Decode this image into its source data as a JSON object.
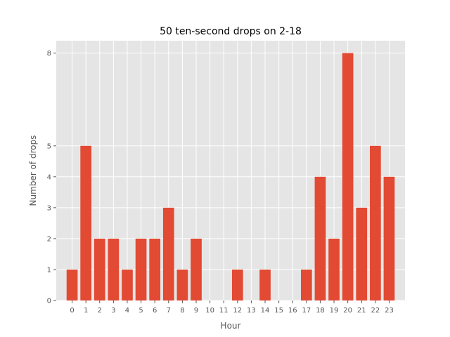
{
  "chart_data": {
    "type": "bar",
    "title": "50 ten-second drops on 2-18",
    "xlabel": "Hour",
    "ylabel": "Number of drops",
    "categories": [
      "0",
      "1",
      "2",
      "3",
      "4",
      "5",
      "6",
      "7",
      "8",
      "9",
      "10",
      "11",
      "12",
      "13",
      "14",
      "15",
      "16",
      "17",
      "18",
      "19",
      "20",
      "21",
      "22",
      "23"
    ],
    "values": [
      1,
      5,
      2,
      2,
      1,
      2,
      2,
      3,
      1,
      2,
      0,
      0,
      1,
      0,
      1,
      0,
      0,
      1,
      4,
      2,
      8,
      3,
      5,
      4
    ],
    "yticks": [
      0,
      1,
      2,
      3,
      4,
      5,
      8
    ],
    "ylim": [
      0,
      8.4
    ],
    "xlim": [
      -1.15,
      24.15
    ],
    "grid": true,
    "colors": {
      "bar": "#E24A33",
      "background": "#E5E5E5",
      "grid": "#FFFFFF",
      "tick": "#555555"
    }
  }
}
